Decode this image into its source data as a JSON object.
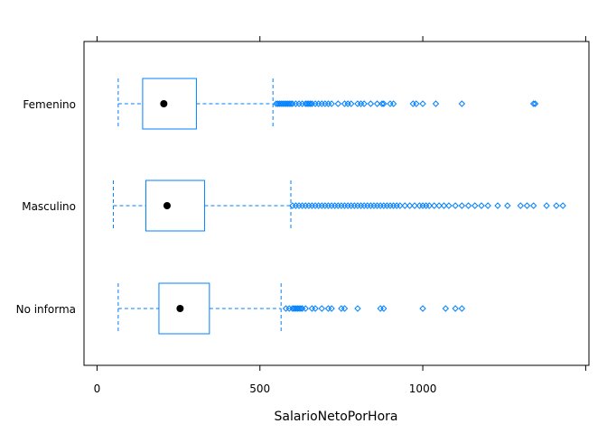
{
  "chart_data": {
    "type": "boxplot",
    "orientation": "horizontal",
    "xlabel": "SalarioNetoPorHora",
    "xlim": [
      -40,
      1510
    ],
    "xticks": [
      0,
      500,
      1000
    ],
    "xtick_labels": [
      "0",
      "500",
      "1000"
    ],
    "grid": false,
    "legend": "none",
    "colors": {
      "box": "#0080ff",
      "median": "#000000",
      "frame": "#000000"
    },
    "groups": [
      {
        "label": "Femenino",
        "lower_whisker": 65,
        "q1": 140,
        "median": 205,
        "q3": 305,
        "upper_whisker": 540,
        "outliers": [
          550,
          555,
          560,
          565,
          570,
          575,
          580,
          585,
          590,
          595,
          600,
          610,
          620,
          630,
          640,
          645,
          650,
          655,
          660,
          670,
          680,
          690,
          700,
          710,
          720,
          740,
          760,
          770,
          780,
          800,
          810,
          820,
          840,
          860,
          875,
          880,
          900,
          910,
          970,
          980,
          1000,
          1040,
          1120,
          1340,
          1345
        ]
      },
      {
        "label": "Masculino",
        "lower_whisker": 50,
        "q1": 150,
        "median": 215,
        "q3": 330,
        "upper_whisker": 595,
        "outliers": [
          600,
          610,
          620,
          630,
          640,
          650,
          660,
          670,
          680,
          690,
          700,
          710,
          720,
          730,
          740,
          750,
          760,
          770,
          780,
          790,
          800,
          810,
          820,
          830,
          840,
          850,
          860,
          870,
          880,
          890,
          900,
          910,
          920,
          930,
          945,
          960,
          975,
          990,
          1000,
          1010,
          1020,
          1035,
          1050,
          1065,
          1080,
          1100,
          1120,
          1140,
          1160,
          1180,
          1200,
          1230,
          1260,
          1300,
          1320,
          1340,
          1380,
          1410,
          1430
        ]
      },
      {
        "label": "No informa",
        "lower_whisker": 65,
        "q1": 190,
        "median": 255,
        "q3": 345,
        "upper_whisker": 565,
        "outliers": [
          580,
          590,
          600,
          605,
          610,
          615,
          620,
          625,
          630,
          640,
          660,
          670,
          690,
          710,
          720,
          750,
          760,
          800,
          870,
          880,
          1000,
          1070,
          1100,
          1120
        ]
      }
    ]
  }
}
